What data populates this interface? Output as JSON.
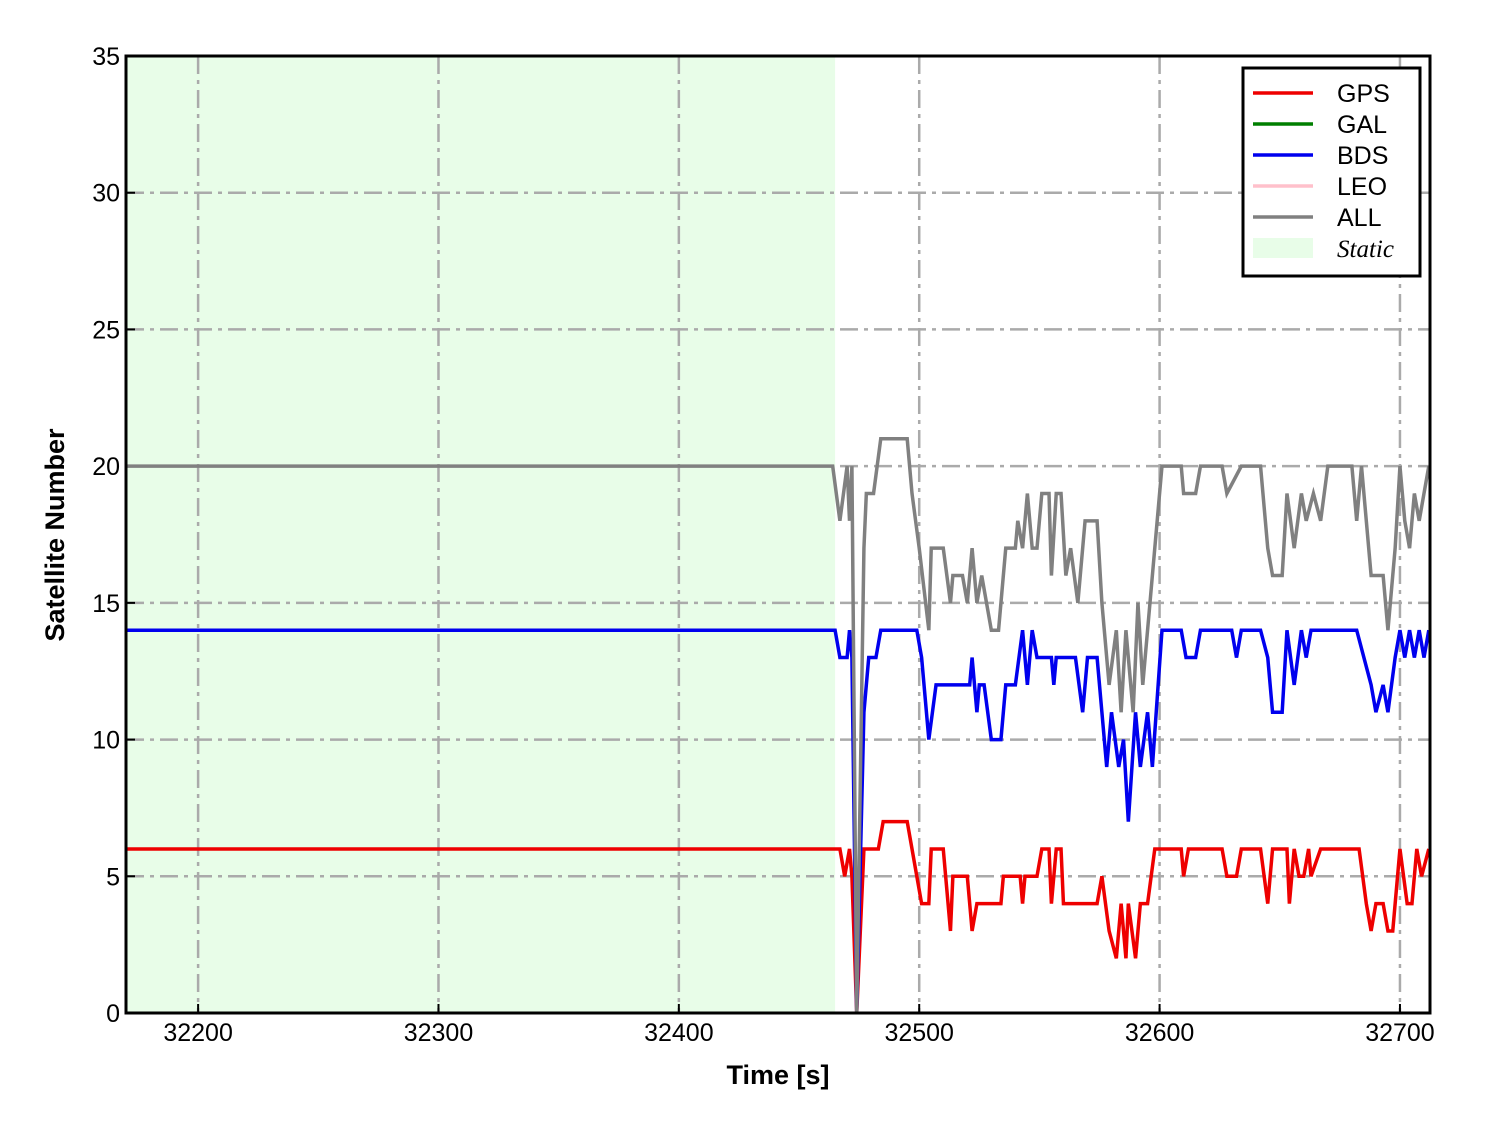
{
  "chart_data": {
    "type": "line",
    "xlabel": "Time [s]",
    "ylabel": "Satellite Number",
    "xlim": [
      32170,
      32712.5
    ],
    "ylim": [
      0,
      35
    ],
    "xticks": [
      32200,
      32300,
      32400,
      32500,
      32600,
      32700
    ],
    "yticks": [
      0,
      5,
      10,
      15,
      20,
      25,
      30,
      35
    ],
    "grid": true,
    "legend": "upper right",
    "shaded_regions": [
      {
        "name": "Static",
        "color": "#e8fde8",
        "x": [
          32170,
          32465
        ]
      }
    ],
    "series": [
      {
        "name": "GPS",
        "color": "#ee0000",
        "x": [
          32170,
          32467,
          32469,
          32471,
          32472,
          32474,
          32477,
          32483,
          32485,
          32495,
          32497,
          32499,
          32501,
          32504,
          32505,
          32510,
          32511,
          32513,
          32514,
          32520,
          32522,
          32524,
          32534,
          32535,
          32542,
          32543,
          32544,
          32549,
          32551,
          32554,
          32555,
          32557,
          32559,
          32560,
          32574,
          32576,
          32579,
          32582,
          32584,
          32586,
          32587,
          32590,
          32592,
          32595,
          32598,
          32609,
          32610,
          32612,
          32626,
          32628,
          32632,
          32634,
          32642,
          32645,
          32647,
          32653,
          32654,
          32656,
          32658,
          32660,
          32662,
          32663,
          32667,
          32683,
          32686,
          32688,
          32690,
          32693,
          32695,
          32697,
          32700,
          32703,
          32705,
          32707,
          32709,
          32712
        ],
        "values": [
          6,
          6,
          5,
          6,
          5,
          0,
          6,
          6,
          7,
          7,
          6,
          5,
          4,
          4,
          6,
          6,
          5,
          3,
          5,
          5,
          3,
          4,
          4,
          5,
          5,
          4,
          5,
          5,
          6,
          6,
          4,
          6,
          6,
          4,
          4,
          5,
          3,
          2,
          4,
          2,
          4,
          2,
          4,
          4,
          6,
          6,
          5,
          6,
          6,
          5,
          5,
          6,
          6,
          4,
          6,
          6,
          4,
          6,
          5,
          5,
          6,
          5,
          6,
          6,
          4,
          3,
          4,
          4,
          3,
          3,
          6,
          4,
          4,
          6,
          5,
          6
        ]
      },
      {
        "name": "GAL",
        "color": "#007f00",
        "x": [],
        "values": []
      },
      {
        "name": "BDS",
        "color": "#0000ee",
        "x": [
          32170,
          32465,
          32467,
          32470,
          32471,
          32472,
          32474,
          32477,
          32479,
          32482,
          32484,
          32499,
          32501,
          32504,
          32507,
          32521,
          32522,
          32524,
          32525,
          32527,
          32530,
          32534,
          32536,
          32540,
          32543,
          32545,
          32547,
          32549,
          32555,
          32556,
          32557,
          32565,
          32568,
          32570,
          32574,
          32576,
          32578,
          32580,
          32583,
          32585,
          32587,
          32590,
          32592,
          32595,
          32597,
          32601,
          32609,
          32611,
          32615,
          32617,
          32630,
          32632,
          32634,
          32642,
          32645,
          32647,
          32651,
          32653,
          32656,
          32659,
          32661,
          32663,
          32682,
          32685,
          32688,
          32690,
          32693,
          32695,
          32698,
          32700,
          32702,
          32704,
          32706,
          32708,
          32710,
          32712
        ],
        "values": [
          14,
          14,
          13,
          13,
          14,
          13,
          0,
          11,
          13,
          13,
          14,
          14,
          13,
          10,
          12,
          12,
          13,
          11,
          12,
          12,
          10,
          10,
          12,
          12,
          14,
          12,
          14,
          13,
          13,
          12,
          13,
          13,
          11,
          13,
          13,
          11,
          9,
          11,
          9,
          10,
          7,
          11,
          9,
          11,
          9,
          14,
          14,
          13,
          13,
          14,
          14,
          13,
          14,
          14,
          13,
          11,
          11,
          14,
          12,
          14,
          13,
          14,
          14,
          13,
          12,
          11,
          12,
          11,
          13,
          14,
          13,
          14,
          13,
          14,
          13,
          14
        ]
      },
      {
        "name": "LEO",
        "color": "#ffc0cb",
        "x": [],
        "values": []
      },
      {
        "name": "ALL",
        "color": "#808080",
        "x": [
          32170,
          32464,
          32467,
          32470,
          32471,
          32472,
          32474,
          32477,
          32478,
          32481,
          32484,
          32495,
          32497,
          32500,
          32504,
          32505,
          32510,
          32513,
          32514,
          32518,
          32520,
          32522,
          32524,
          32526,
          32530,
          32533,
          32536,
          32540,
          32541,
          32543,
          32545,
          32547,
          32549,
          32551,
          32554,
          32555,
          32557,
          32559,
          32561,
          32563,
          32566,
          32569,
          32574,
          32576,
          32579,
          32582,
          32584,
          32586,
          32589,
          32591,
          32593,
          32596,
          32601,
          32609,
          32610,
          32615,
          32617,
          32626,
          32628,
          32634,
          32642,
          32645,
          32647,
          32651,
          32653,
          32656,
          32659,
          32661,
          32664,
          32667,
          32670,
          32680,
          32682,
          32684,
          32686,
          32688,
          32693,
          32695,
          32698,
          32700,
          32702,
          32704,
          32706,
          32708,
          32710,
          32712
        ],
        "values": [
          20,
          20,
          18,
          20,
          18,
          20,
          0,
          17,
          19,
          19,
          21,
          21,
          19,
          17,
          14,
          17,
          17,
          15,
          16,
          16,
          15,
          17,
          15,
          16,
          14,
          14,
          17,
          17,
          18,
          17,
          19,
          17,
          17,
          19,
          19,
          16,
          19,
          19,
          16,
          17,
          15,
          18,
          18,
          15,
          12,
          14,
          11,
          14,
          11,
          15,
          12,
          15,
          20,
          20,
          19,
          19,
          20,
          20,
          19,
          20,
          20,
          17,
          16,
          16,
          19,
          17,
          19,
          18,
          19,
          18,
          20,
          20,
          18,
          20,
          18,
          16,
          16,
          14,
          17,
          20,
          18,
          17,
          19,
          18,
          19,
          20
        ]
      }
    ]
  }
}
